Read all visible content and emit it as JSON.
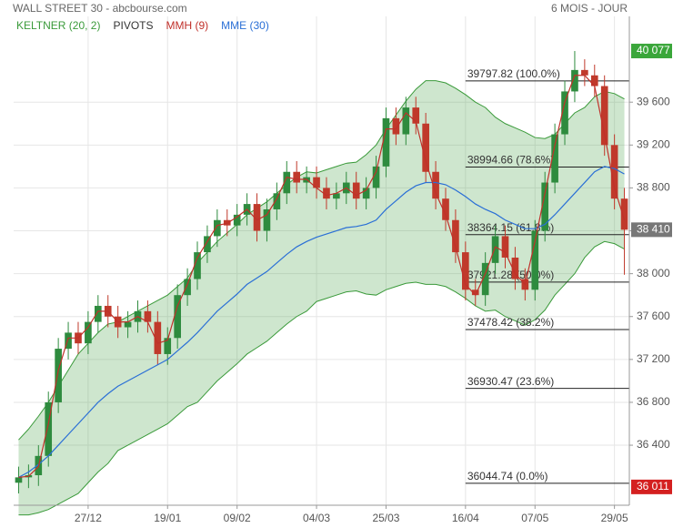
{
  "chart_data": {
    "type": "candlestick",
    "title": "WALL STREET 30 - abcbourse.com",
    "period": "6 MOIS - JOUR",
    "legend": [
      {
        "name": "KELTNER (20, 2)",
        "color": "#3a9a3a"
      },
      {
        "name": "PIVOTS",
        "color": "#333333"
      },
      {
        "name": "MMH (9)",
        "color": "#c0302a"
      },
      {
        "name": "MME (30)",
        "color": "#2a6fd6"
      }
    ],
    "categories": [
      null,
      null,
      null,
      null,
      null,
      null,
      null,
      "27/12",
      null,
      null,
      null,
      null,
      null,
      null,
      null,
      "19/01",
      null,
      null,
      null,
      null,
      null,
      null,
      "09/02",
      null,
      null,
      null,
      null,
      null,
      null,
      null,
      "04/03",
      null,
      null,
      null,
      null,
      null,
      null,
      "25/03",
      null,
      null,
      null,
      null,
      null,
      null,
      null,
      "16/04",
      null,
      null,
      null,
      null,
      null,
      null,
      "07/05",
      null,
      null,
      null,
      null,
      null,
      null,
      null,
      "29/05",
      null
    ],
    "candles": {
      "open": [
        36050,
        36100,
        36120,
        36300,
        36800,
        37300,
        37450,
        37350,
        37550,
        37700,
        37600,
        37500,
        37550,
        37650,
        37550,
        37250,
        37400,
        37800,
        37950,
        38200,
        38350,
        38500,
        38450,
        38550,
        38650,
        38400,
        38600,
        38750,
        38950,
        38850,
        38900,
        38800,
        38700,
        38750,
        38850,
        38700,
        38800,
        39000,
        39450,
        39300,
        39550,
        39400,
        38950,
        38700,
        38500,
        38200,
        37850,
        37800,
        38100,
        38350,
        38150,
        37950,
        37850,
        38400,
        38850,
        39300,
        39700,
        39900,
        39850,
        39750,
        39200,
        38700
      ],
      "high": [
        36200,
        36220,
        36400,
        36900,
        37400,
        37550,
        37550,
        37650,
        37800,
        37800,
        37700,
        37650,
        37750,
        37750,
        37650,
        37500,
        37900,
        38050,
        38300,
        38450,
        38600,
        38600,
        38650,
        38750,
        38750,
        38700,
        38850,
        39050,
        39050,
        39000,
        39000,
        38900,
        38850,
        38950,
        38950,
        38900,
        39100,
        39550,
        39550,
        39650,
        39650,
        39500,
        39050,
        38800,
        38600,
        38300,
        37950,
        38200,
        38450,
        38450,
        38250,
        38050,
        38500,
        38950,
        39400,
        39800,
        40077,
        40000,
        39950,
        39850,
        39300,
        38800
      ],
      "low": [
        35950,
        36000,
        36020,
        36200,
        36700,
        37200,
        37250,
        37250,
        37450,
        37500,
        37400,
        37400,
        37450,
        37450,
        37150,
        37150,
        37300,
        37700,
        37850,
        38100,
        38250,
        38350,
        38350,
        38450,
        38300,
        38300,
        38500,
        38650,
        38750,
        38750,
        38700,
        38600,
        38600,
        38650,
        38600,
        38600,
        38700,
        38900,
        39200,
        39200,
        39300,
        38850,
        38600,
        38400,
        38100,
        37750,
        37700,
        37700,
        38000,
        38050,
        37850,
        37750,
        37750,
        38300,
        38750,
        39200,
        39600,
        39750,
        39650,
        39100,
        38600,
        37990
      ],
      "close": [
        36100,
        36120,
        36300,
        36800,
        37300,
        37450,
        37350,
        37550,
        37700,
        37600,
        37500,
        37550,
        37650,
        37550,
        37250,
        37400,
        37800,
        37950,
        38200,
        38350,
        38500,
        38450,
        38550,
        38650,
        38400,
        38600,
        38750,
        38950,
        38850,
        38900,
        38800,
        38700,
        38750,
        38850,
        38700,
        38800,
        39000,
        39450,
        39300,
        39550,
        39400,
        38950,
        38700,
        38500,
        38200,
        37850,
        37800,
        38100,
        38350,
        38150,
        37950,
        37850,
        38400,
        38850,
        39300,
        39700,
        39900,
        39850,
        39750,
        39200,
        38700,
        38410
      ],
      "up_color": "#2e8b3e",
      "down_color": "#c0392b"
    },
    "keltner": {
      "upper": [
        36450,
        36550,
        36670,
        36800,
        36950,
        37100,
        37250,
        37350,
        37450,
        37530,
        37550,
        37600,
        37650,
        37700,
        37750,
        37800,
        37880,
        37960,
        38100,
        38200,
        38300,
        38380,
        38460,
        38550,
        38610,
        38670,
        38750,
        38830,
        38900,
        38950,
        38940,
        38970,
        39000,
        39030,
        39040,
        39110,
        39200,
        39350,
        39480,
        39610,
        39720,
        39800,
        39800,
        39780,
        39730,
        39670,
        39600,
        39550,
        39460,
        39400,
        39360,
        39320,
        39270,
        39260,
        39300,
        39400,
        39500,
        39550,
        39650,
        39700,
        39680,
        39630
      ],
      "lower": [
        35750,
        35750,
        35770,
        35800,
        35850,
        35900,
        35950,
        36050,
        36150,
        36230,
        36350,
        36400,
        36450,
        36500,
        36550,
        36600,
        36680,
        36760,
        36800,
        36900,
        37000,
        37080,
        37160,
        37250,
        37310,
        37370,
        37450,
        37530,
        37600,
        37650,
        37740,
        37770,
        37800,
        37830,
        37840,
        37810,
        37800,
        37850,
        37880,
        37910,
        37920,
        37900,
        37900,
        37880,
        37830,
        37770,
        37700,
        37650,
        37660,
        37600,
        37560,
        37520,
        37570,
        37660,
        37800,
        37900,
        38000,
        38150,
        38250,
        38300,
        38280,
        38230
      ]
    },
    "mmh": [
      36100,
      36110,
      36200,
      36600,
      37100,
      37400,
      37400,
      37500,
      37650,
      37650,
      37550,
      37550,
      37600,
      37550,
      37350,
      37380,
      37700,
      37900,
      38150,
      38300,
      38450,
      38470,
      38530,
      38600,
      38500,
      38550,
      38700,
      38900,
      38880,
      38880,
      38800,
      38730,
      38750,
      38800,
      38730,
      38780,
      38950,
      39350,
      39350,
      39500,
      39420,
      39050,
      38750,
      38550,
      38250,
      37900,
      37800,
      38000,
      38250,
      38200,
      38000,
      37900,
      38300,
      38750,
      39200,
      39600,
      39850,
      39850,
      39750,
      39300,
      38800,
      38500
    ],
    "mme": [
      36100,
      36150,
      36220,
      36300,
      36400,
      36500,
      36600,
      36700,
      36800,
      36880,
      36950,
      37000,
      37050,
      37100,
      37150,
      37200,
      37280,
      37360,
      37450,
      37550,
      37650,
      37730,
      37810,
      37900,
      37960,
      38020,
      38100,
      38180,
      38250,
      38300,
      38340,
      38370,
      38400,
      38430,
      38440,
      38460,
      38500,
      38600,
      38680,
      38760,
      38820,
      38850,
      38850,
      38830,
      38780,
      38720,
      38650,
      38600,
      38560,
      38500,
      38460,
      38420,
      38420,
      38460,
      38550,
      38650,
      38750,
      38850,
      38950,
      39000,
      38980,
      38930
    ],
    "fibonacci": [
      {
        "value": 39797.82,
        "label": "39797.82  (100.0%)"
      },
      {
        "value": 38994.66,
        "label": "38994.66  (78.6%)"
      },
      {
        "value": 38364.15,
        "label": "38364.15  (61.8%)"
      },
      {
        "value": 37921.28,
        "label": "37921.28  (50.0%)"
      },
      {
        "value": 37478.42,
        "label": "37478.42  (38.2%)"
      },
      {
        "value": 36930.47,
        "label": "36930.47  (23.6%)"
      },
      {
        "value": 36044.74,
        "label": "36044.74  (0.0%)"
      }
    ],
    "price_tags": [
      {
        "value": 40077,
        "label": "40 077",
        "color": "#3aa63a"
      },
      {
        "value": 38410,
        "label": "38 410",
        "color": "#777777"
      },
      {
        "value": 36011,
        "label": "36 011",
        "color": "#d42020"
      }
    ],
    "ylim": [
      35840,
      40400
    ],
    "yticks": [
      {
        "value": 36400,
        "label": "36 400"
      },
      {
        "value": 36800,
        "label": "36 800"
      },
      {
        "value": 37200,
        "label": "37 200"
      },
      {
        "value": 37600,
        "label": "37 600"
      },
      {
        "value": 38000,
        "label": "38 000"
      },
      {
        "value": 38400,
        "label": "38 400"
      },
      {
        "value": 38800,
        "label": "38 800"
      },
      {
        "value": 39200,
        "label": "39 200"
      },
      {
        "value": 39600,
        "label": "39 600"
      }
    ],
    "grid": true
  }
}
